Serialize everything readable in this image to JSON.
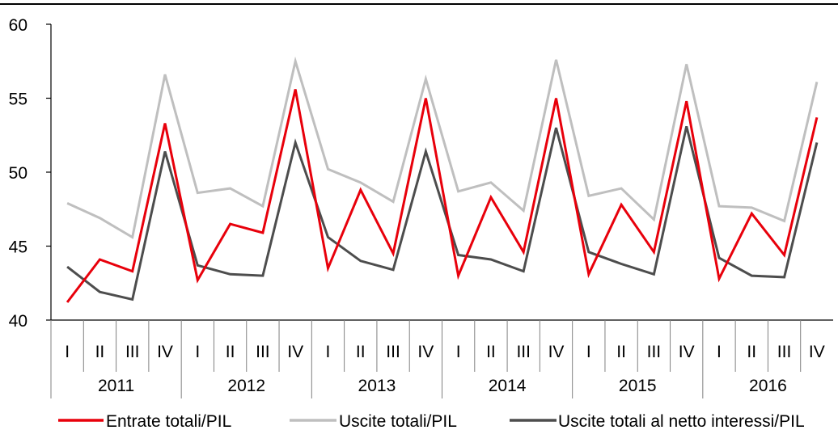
{
  "chart_data": {
    "type": "line",
    "title": "",
    "xlabel": "",
    "ylabel": "",
    "ylim": [
      40,
      60
    ],
    "yticks": [
      40,
      45,
      50,
      55,
      60
    ],
    "grid": false,
    "legend_position": "bottom",
    "quarters": [
      "I",
      "II",
      "III",
      "IV"
    ],
    "years": [
      "2011",
      "2012",
      "2013",
      "2014",
      "2015",
      "2016"
    ],
    "series": [
      {
        "name": "Entrate totali/PIL",
        "color": "#e8000b",
        "values": [
          41.2,
          44.1,
          43.3,
          53.3,
          42.7,
          46.5,
          45.9,
          55.6,
          43.5,
          48.8,
          44.5,
          55.0,
          43.0,
          48.3,
          44.6,
          55.0,
          43.1,
          47.8,
          44.6,
          54.8,
          42.8,
          47.2,
          44.4,
          53.7
        ]
      },
      {
        "name": "Uscite totali/PIL",
        "color": "#bfbfbf",
        "values": [
          47.9,
          46.9,
          45.6,
          56.6,
          48.6,
          48.9,
          47.7,
          57.5,
          50.2,
          49.3,
          48.0,
          56.3,
          48.7,
          49.3,
          47.4,
          57.6,
          48.4,
          48.9,
          46.8,
          57.3,
          47.7,
          47.6,
          46.7,
          56.1
        ]
      },
      {
        "name": "Uscite totali al netto interessi/PIL",
        "color": "#4d4d4d",
        "values": [
          43.6,
          41.9,
          41.4,
          51.4,
          43.7,
          43.1,
          43.0,
          52.0,
          45.6,
          44.0,
          43.4,
          51.4,
          44.4,
          44.1,
          43.3,
          53.0,
          44.6,
          43.8,
          43.1,
          53.1,
          44.2,
          43.0,
          42.9,
          52.0
        ]
      }
    ]
  }
}
